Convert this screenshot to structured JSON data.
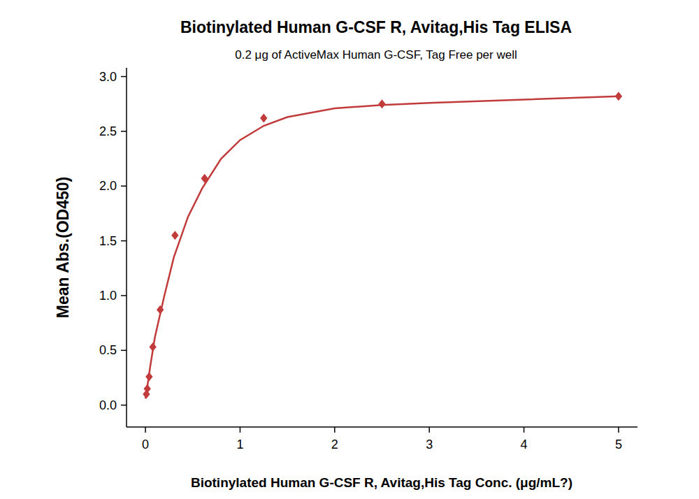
{
  "chart_data": {
    "type": "scatter",
    "title": "Biotinylated Human G-CSF R, Avitag,His Tag ELISA",
    "subtitle": "0.2 μg of ActiveMax Human G-CSF, Tag Free per well",
    "x_label": "Biotinylated Human G-CSF R, Avitag,His Tag Conc. (μg/mL?)",
    "y_label": "Mean Abs.(OD450)",
    "series": [
      {
        "type": "scatter",
        "marker": "diamond",
        "color": "#c23b3b",
        "x": [
          0.0098,
          0.0195,
          0.039,
          0.078,
          0.156,
          0.3125,
          0.625,
          1.25,
          2.5,
          5
        ],
        "values": [
          0.1,
          0.15,
          0.26,
          0.53,
          0.87,
          1.55,
          2.07,
          2.62,
          2.75,
          2.82
        ]
      },
      {
        "type": "line",
        "line_style": "solid",
        "color": "#c23b3b",
        "x": [
          0,
          0.02,
          0.05,
          0.1,
          0.2,
          0.3,
          0.45,
          0.6,
          0.8,
          1.0,
          1.25,
          1.5,
          2,
          2.5,
          3,
          4,
          5
        ],
        "values": [
          0.06,
          0.17,
          0.35,
          0.62,
          1.0,
          1.35,
          1.72,
          1.98,
          2.25,
          2.42,
          2.55,
          2.63,
          2.71,
          2.74,
          2.76,
          2.79,
          2.82
        ]
      }
    ],
    "xlim": [
      -0.2,
      5.2
    ],
    "xticks": [
      0,
      1,
      2,
      3,
      4,
      5
    ],
    "ylim": [
      -0.2,
      3.08
    ],
    "yticks": [
      {
        "value": 0,
        "label": "0.0"
      },
      {
        "value": 0.5,
        "label": "0.5"
      },
      {
        "value": 1,
        "label": "1.0"
      },
      {
        "value": 1.5,
        "label": "1.5"
      },
      {
        "value": 2,
        "label": "2.0"
      },
      {
        "value": 2.5,
        "label": "2.5"
      },
      {
        "value": 3,
        "label": "3.0"
      }
    ],
    "grid": false
  }
}
